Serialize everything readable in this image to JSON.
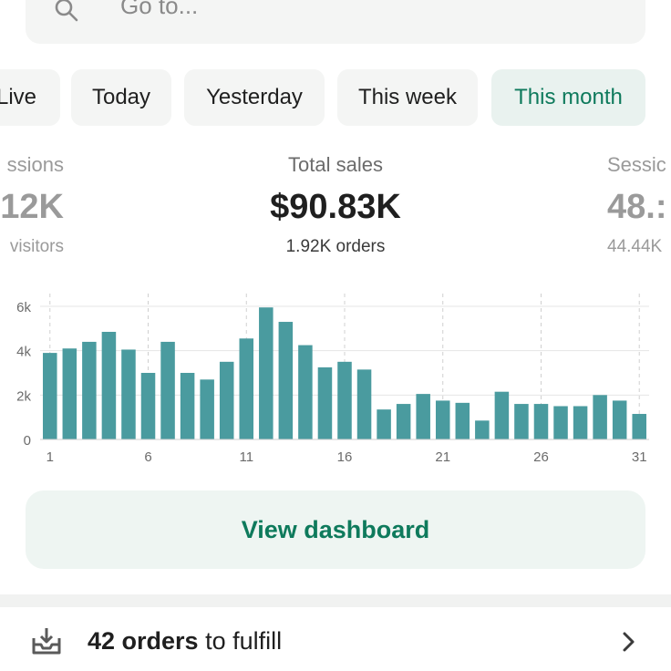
{
  "search": {
    "placeholder": "Go to..."
  },
  "ranges": [
    {
      "label": "Live"
    },
    {
      "label": "Today"
    },
    {
      "label": "Yesterday"
    },
    {
      "label": "This week"
    },
    {
      "label": "This month",
      "active": true
    }
  ],
  "metrics": {
    "left": {
      "label": "ssions",
      "value": "12K",
      "sub": "visitors"
    },
    "center": {
      "label": "Total sales",
      "value": "$90.83K",
      "sub": "1.92K orders"
    },
    "right": {
      "label": "Sessic",
      "value": "48.:",
      "sub": "44.44K"
    }
  },
  "chart_data": {
    "type": "bar",
    "x": [
      1,
      2,
      3,
      4,
      5,
      6,
      7,
      8,
      9,
      10,
      11,
      12,
      13,
      14,
      15,
      16,
      17,
      18,
      19,
      20,
      21,
      22,
      23,
      24,
      25,
      26,
      27,
      28,
      29,
      30,
      31
    ],
    "values": [
      3900,
      4100,
      4400,
      4850,
      4050,
      3000,
      4400,
      3000,
      2700,
      3500,
      4550,
      5950,
      5300,
      4250,
      3250,
      3500,
      3150,
      1350,
      1600,
      2050,
      1750,
      1650,
      850,
      2150,
      1600,
      1600,
      1500,
      1500,
      2000,
      1750,
      1150
    ],
    "ylim": [
      0,
      6000
    ],
    "yticks": [
      0,
      2000,
      4000,
      6000
    ],
    "ytick_labels": [
      "0",
      "2k",
      "4k",
      "6k"
    ],
    "xticks": [
      1,
      6,
      11,
      16,
      21,
      26,
      31
    ],
    "xtick_labels": [
      "1",
      "6",
      "11",
      "16",
      "21",
      "26",
      "31"
    ],
    "color": "#4a9b9f",
    "grid": true
  },
  "button": {
    "label": "View dashboard"
  },
  "fulfill": {
    "count": "42 orders",
    "text": " to fulfill"
  },
  "colors": {
    "accent": "#0e7a5c",
    "bar": "#4a9b9f",
    "chip_bg": "#f4f5f4",
    "active_chip_bg": "#e9f2ef"
  }
}
